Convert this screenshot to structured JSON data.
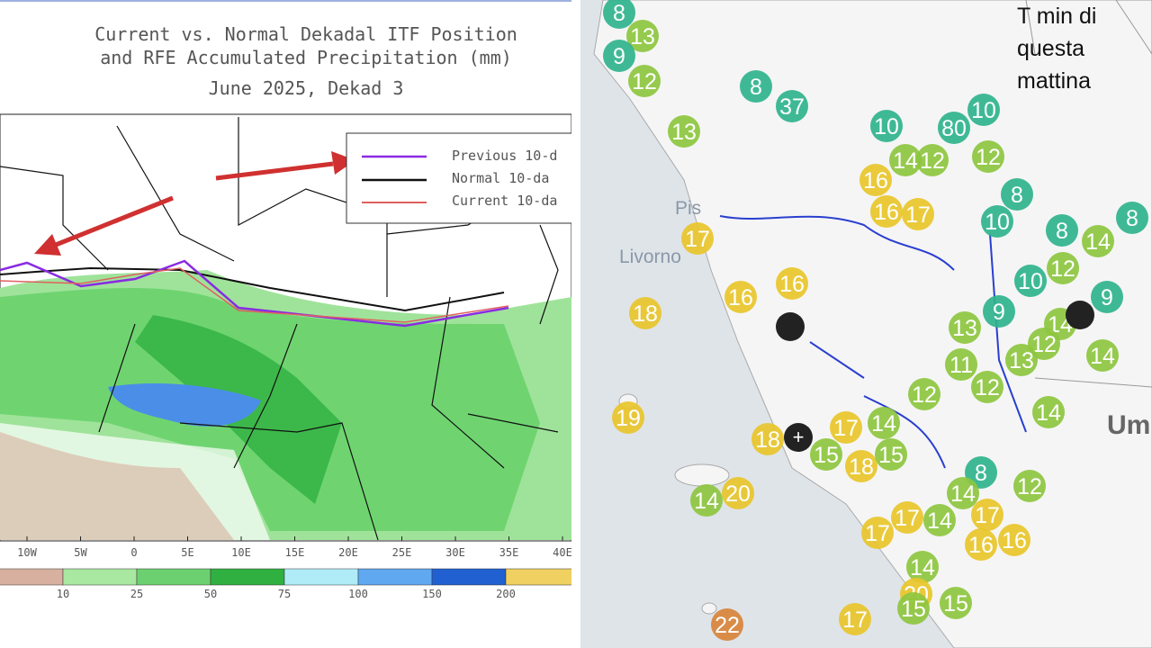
{
  "left_map": {
    "title_lines": [
      "Current vs. Normal Dekadal ITF Position",
      "and RFE Accumulated Precipitation (mm)",
      "June 2025, Dekad 3"
    ],
    "legend": [
      "Previous 10-d",
      "Normal 10-da",
      "Current 10-da"
    ],
    "x_axis_labels": [
      "10W",
      "5W",
      "0",
      "5E",
      "10E",
      "15E",
      "20E",
      "25E",
      "30E",
      "35E",
      "40E"
    ],
    "colorbar_labels": [
      "10",
      "25",
      "50",
      "75",
      "100",
      "150",
      "200"
    ]
  },
  "right_map": {
    "caption_lines": [
      "T min di",
      "questa",
      "mattina"
    ],
    "place_labels": [
      "Pis",
      "Livorno",
      "Um"
    ],
    "temperatures": [
      8,
      13,
      9,
      12,
      8,
      37,
      10,
      80,
      13,
      10,
      12,
      12,
      14,
      16,
      17,
      16,
      8,
      10,
      8,
      8,
      14,
      12,
      9,
      10,
      9,
      14,
      12,
      14,
      13,
      14,
      18,
      19,
      18,
      20,
      14,
      15,
      18,
      15,
      17,
      14,
      12,
      12,
      11,
      13,
      16,
      16,
      17,
      16,
      16,
      17,
      12,
      8,
      17,
      17,
      14,
      20,
      15,
      15,
      17,
      22,
      14,
      14
    ]
  }
}
